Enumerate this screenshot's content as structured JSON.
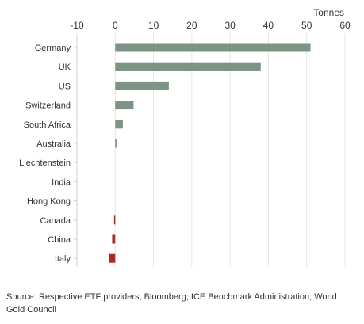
{
  "chart_data": {
    "type": "bar",
    "orientation": "horizontal",
    "title": "",
    "xlabel": "",
    "ylabel": "",
    "unit_label": "Tonnes",
    "categories": [
      "Germany",
      "UK",
      "US",
      "Switzerland",
      "South Africa",
      "Australia",
      "Liechtenstein",
      "India",
      "Hong Kong",
      "Canada",
      "China",
      "Italy"
    ],
    "values": [
      51,
      38,
      14,
      4.8,
      2,
      0.5,
      0,
      0,
      0,
      -0.3,
      -0.8,
      -1.6
    ],
    "xlim": [
      -10,
      60
    ],
    "xticks": [
      -10,
      0,
      10,
      20,
      30,
      40,
      50,
      60
    ],
    "grid": true,
    "legend": "none",
    "colors": {
      "positive": "#7c9484",
      "negative": "#aa2a2a",
      "grid": "#e5e5e5",
      "axis": "#cfcfcf"
    }
  },
  "source": "Source: Respective ETF providers; Bloomberg; ICE Benchmark Administration; World Gold Council"
}
